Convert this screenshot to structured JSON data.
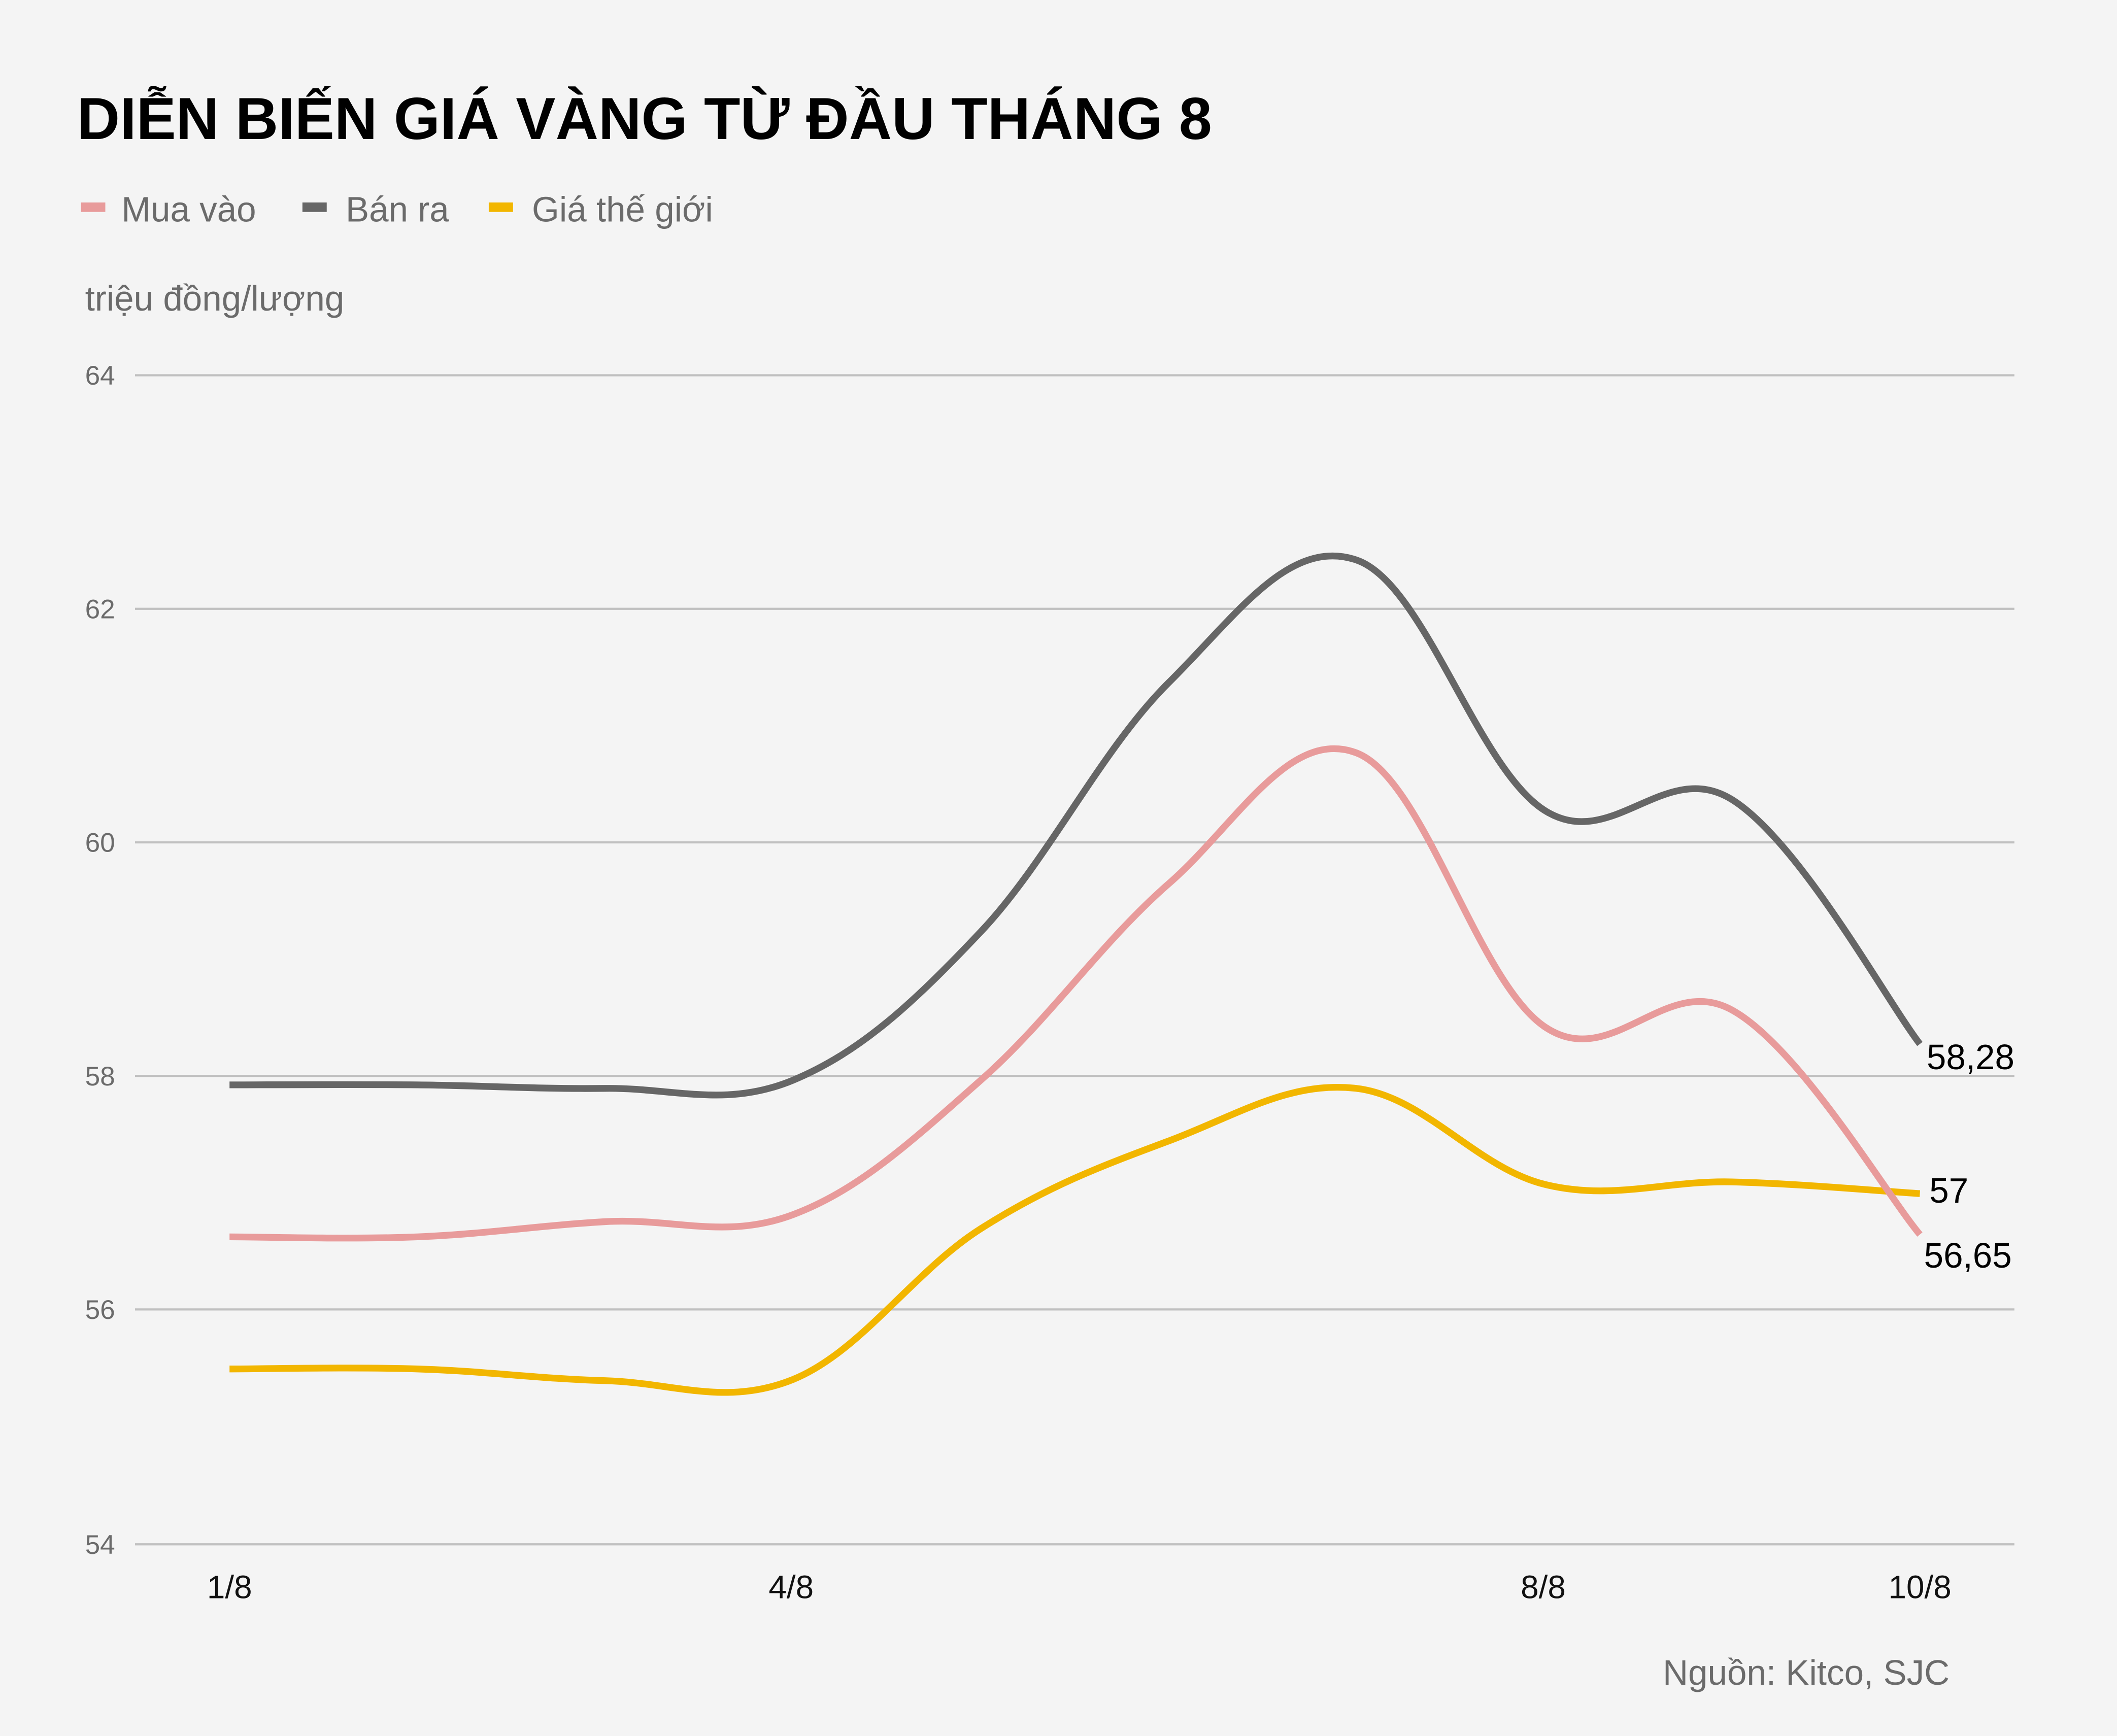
{
  "header": {
    "title": "DIỄN BIẾN GIÁ VÀNG TỪ ĐẦU THÁNG 8"
  },
  "legend": [
    {
      "label": "Mua vào",
      "color": "#e89b9b"
    },
    {
      "label": "Bán ra",
      "color": "#666666"
    },
    {
      "label": "Giá thế giới",
      "color": "#f2b600"
    }
  ],
  "unit_label": "triệu đồng/lượng",
  "source": "Nguồn: Kitco, SJC",
  "end_labels": {
    "ban_ra": "58,28",
    "gia_the_gioi": "57",
    "mua_vao": "56,65"
  },
  "y_ticks": [
    "64",
    "62",
    "60",
    "58",
    "56",
    "54"
  ],
  "x_ticks": [
    "1/8",
    "4/8",
    "8/8",
    "10/8"
  ],
  "chart_data": {
    "type": "line",
    "title": "DIỄN BIẾN GIÁ VÀNG TỪ ĐẦU THÁNG 8",
    "xlabel": "",
    "ylabel": "triệu đồng/lượng",
    "ylim": [
      54,
      64
    ],
    "y_ticks": [
      54,
      56,
      58,
      60,
      62,
      64
    ],
    "grid": true,
    "legend_position": "top-left",
    "x": [
      "1/8",
      "2/8",
      "3/8",
      "4/8",
      "5/8",
      "6/8",
      "7/8",
      "8/8",
      "9/8",
      "10/8"
    ],
    "x_tick_labels_shown": [
      "1/8",
      "4/8",
      "8/8",
      "10/8"
    ],
    "series": [
      {
        "name": "Mua vào",
        "color": "#e89b9b",
        "values": [
          56.63,
          56.63,
          56.76,
          56.82,
          57.97,
          59.65,
          60.77,
          58.43,
          58.57,
          56.65
        ]
      },
      {
        "name": "Bán ra",
        "color": "#666666",
        "values": [
          57.93,
          57.93,
          57.9,
          57.97,
          59.24,
          61.37,
          62.42,
          60.28,
          60.37,
          58.28
        ]
      },
      {
        "name": "Giá thế giới",
        "color": "#f2b600",
        "values": [
          55.5,
          55.5,
          55.4,
          55.41,
          56.7,
          57.45,
          57.9,
          57.08,
          57.1,
          57.0
        ]
      }
    ],
    "annotations": [
      {
        "series": "Bán ra",
        "x": "10/8",
        "text": "58,28"
      },
      {
        "series": "Giá thế giới",
        "x": "10/8",
        "text": "57"
      },
      {
        "series": "Mua vào",
        "x": "10/8",
        "text": "56,65"
      }
    ],
    "source": "Nguồn: Kitco, SJC"
  }
}
